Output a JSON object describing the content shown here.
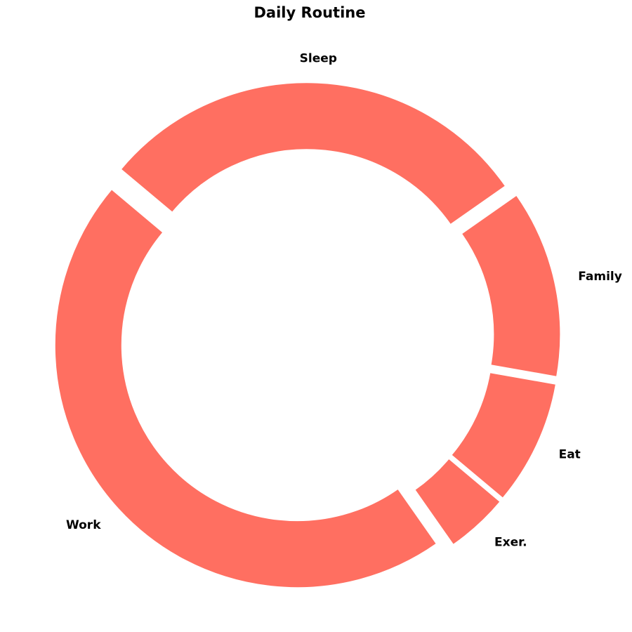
{
  "chart_data": {
    "type": "pie",
    "style": "donut",
    "title": "Daily Routine",
    "categories": [
      "Sleep",
      "Family",
      "Eat",
      "Exer.",
      "Work"
    ],
    "values": [
      7,
      3,
      2,
      1,
      11
    ],
    "unit": "hours",
    "explode": [
      0.05,
      0.05,
      0.05,
      0.05,
      0.05
    ],
    "color": "#ff6f61",
    "legend": "none",
    "grid": false
  }
}
